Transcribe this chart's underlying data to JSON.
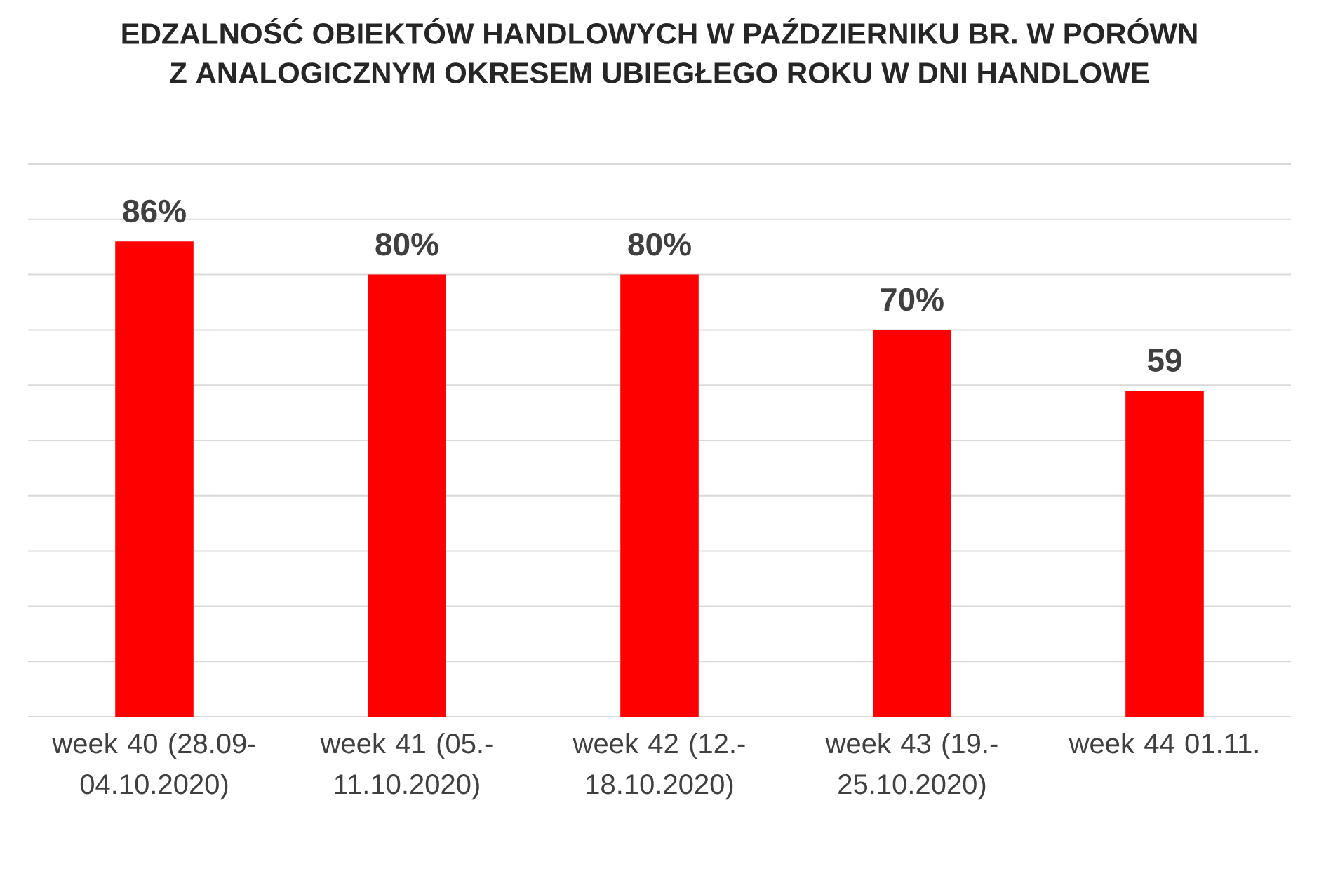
{
  "chart_data": {
    "type": "bar",
    "title": "EDZALNOŚĆ OBIEKTÓW HANDLOWYCH W PAŹDZIERNIKU BR. W PORÓWN",
    "subtitle": "Z ANALOGICZNYM OKRESEM UBIEGŁEGO ROKU W DNI HANDLOWE",
    "categories": [
      "week 40 (28.09-04.10.2020)",
      "week 41 (05.-11.10.2020)",
      "week 42 (12.-18.10.2020)",
      "week 43 (19.-25.10.2020)",
      "week 44 01.11."
    ],
    "values": [
      86,
      80,
      80,
      70,
      59
    ],
    "value_labels": [
      "86%",
      "80%",
      "80%",
      "70%",
      "59"
    ],
    "color": "#ff0000",
    "ylim": [
      0,
      100
    ],
    "yticks": [
      {
        "value": 0,
        "label": null
      },
      {
        "value": 10,
        "label": null
      },
      {
        "value": 20,
        "label": null
      },
      {
        "value": 30,
        "label": null
      },
      {
        "value": 40,
        "label": null
      },
      {
        "value": 50,
        "label": null
      },
      {
        "value": 60,
        "label": null
      },
      {
        "value": 70,
        "label": null
      },
      {
        "value": 80,
        "label": null
      },
      {
        "value": 90,
        "label": null
      },
      {
        "value": 100,
        "label": null
      }
    ],
    "grid": "y",
    "tick_labels": "x"
  }
}
